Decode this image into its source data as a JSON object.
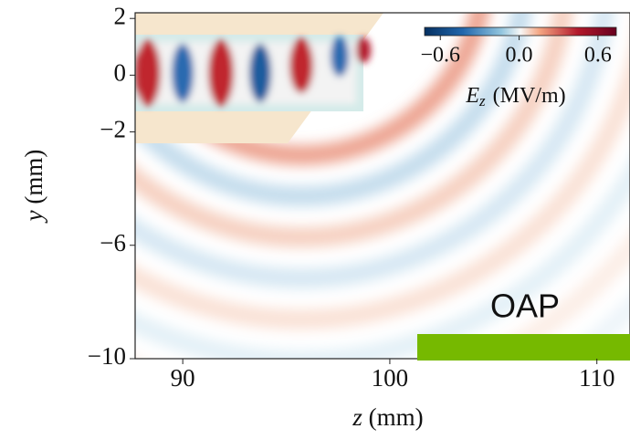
{
  "chart_data": {
    "type": "heatmap",
    "xlabel": {
      "symbol": "z",
      "unit": "(mm)"
    },
    "ylabel": {
      "symbol": "y",
      "unit": "(mm)"
    },
    "xlim": [
      87.7,
      111.6
    ],
    "ylim": [
      -10,
      2.2
    ],
    "xticks": [
      90,
      100,
      110
    ],
    "yticks": [
      2,
      0,
      {
        "value": -2,
        "label": "−2"
      },
      {
        "value": -6,
        "label": "−6"
      },
      {
        "value": -10,
        "label": "−10"
      }
    ],
    "colorbar": {
      "symbol": "E",
      "subscript": "z",
      "unit": "(MV/m)",
      "clim": [
        -0.72,
        0.74
      ],
      "ticks": [
        {
          "value": -0.6,
          "label": "−0.6"
        },
        {
          "value": 0,
          "label": "0.0"
        },
        {
          "value": 0.6,
          "label": "0.6"
        }
      ]
    },
    "annotation": {
      "text": "OAP",
      "color": "#76b900"
    }
  }
}
